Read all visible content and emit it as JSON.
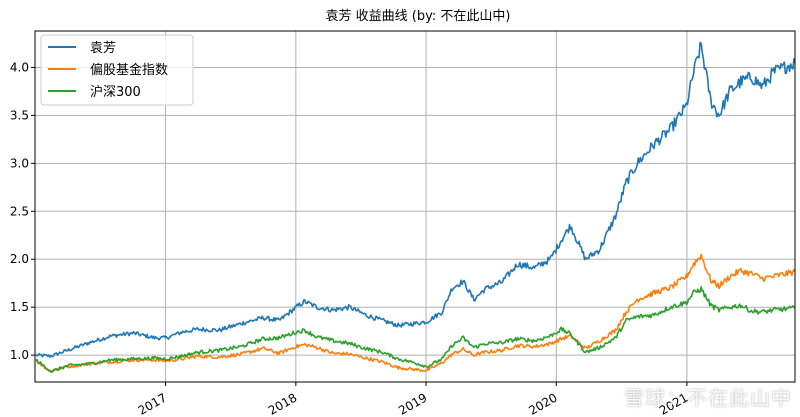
{
  "chart_data": {
    "type": "line",
    "title": "袁芳 收益曲线  (by: 不在此山中)",
    "xlabel": "",
    "ylabel": "",
    "xlim": [
      "2016-01-01",
      "2021-10-31"
    ],
    "ylim": [
      0.72,
      4.38
    ],
    "x_ticks": [
      "2017",
      "2018",
      "2019",
      "2020",
      "2021"
    ],
    "y_ticks": [
      "1.0",
      "1.5",
      "2.0",
      "2.5",
      "3.0",
      "3.5",
      "4.0"
    ],
    "grid": true,
    "legend_position": "top-left",
    "x": [
      "2016-01-04",
      "2016-02-15",
      "2016-04-01",
      "2016-06-01",
      "2016-08-01",
      "2016-10-03",
      "2016-12-01",
      "2017-01-03",
      "2017-02-15",
      "2017-04-01",
      "2017-06-01",
      "2017-08-01",
      "2017-10-02",
      "2017-11-15",
      "2018-01-02",
      "2018-01-26",
      "2018-03-01",
      "2018-04-15",
      "2018-06-01",
      "2018-07-15",
      "2018-09-01",
      "2018-10-15",
      "2018-12-01",
      "2019-01-03",
      "2019-02-15",
      "2019-03-15",
      "2019-04-15",
      "2019-05-15",
      "2019-06-15",
      "2019-08-01",
      "2019-09-15",
      "2019-11-01",
      "2019-12-15",
      "2020-01-15",
      "2020-02-10",
      "2020-03-23",
      "2020-05-01",
      "2020-06-15",
      "2020-07-15",
      "2020-08-15",
      "2020-10-01",
      "2020-11-15",
      "2020-12-31",
      "2021-01-20",
      "2021-02-10",
      "2021-03-09",
      "2021-04-01",
      "2021-05-01",
      "2021-06-01",
      "2021-07-01",
      "2021-08-01",
      "2021-09-01",
      "2021-10-31"
    ],
    "series": [
      {
        "name": "袁芳",
        "color": "#1f77b4",
        "values": [
          1.0,
          0.99,
          1.05,
          1.13,
          1.2,
          1.23,
          1.18,
          1.18,
          1.24,
          1.27,
          1.26,
          1.33,
          1.39,
          1.36,
          1.5,
          1.56,
          1.5,
          1.47,
          1.5,
          1.42,
          1.36,
          1.31,
          1.33,
          1.35,
          1.45,
          1.7,
          1.77,
          1.58,
          1.69,
          1.76,
          1.95,
          1.91,
          2.0,
          2.2,
          2.35,
          2.0,
          2.1,
          2.45,
          2.8,
          3.0,
          3.2,
          3.35,
          3.6,
          3.95,
          4.23,
          3.65,
          3.5,
          3.75,
          3.85,
          3.9,
          3.8,
          3.95,
          4.05
        ]
      },
      {
        "name": "偏股基金指数",
        "color": "#ff7f0e",
        "values": [
          0.94,
          0.83,
          0.88,
          0.91,
          0.93,
          0.95,
          0.95,
          0.94,
          0.96,
          0.99,
          0.98,
          1.01,
          1.07,
          1.02,
          1.09,
          1.11,
          1.08,
          1.02,
          1.01,
          0.97,
          0.93,
          0.87,
          0.85,
          0.84,
          0.92,
          1.01,
          1.06,
          1.0,
          1.03,
          1.05,
          1.1,
          1.09,
          1.12,
          1.17,
          1.2,
          1.07,
          1.15,
          1.26,
          1.45,
          1.58,
          1.65,
          1.7,
          1.82,
          1.95,
          2.04,
          1.78,
          1.72,
          1.82,
          1.88,
          1.85,
          1.8,
          1.82,
          1.87
        ]
      },
      {
        "name": "沪深300",
        "color": "#2ca02c",
        "values": [
          0.95,
          0.83,
          0.89,
          0.91,
          0.95,
          0.96,
          0.97,
          0.96,
          0.99,
          1.03,
          1.05,
          1.09,
          1.17,
          1.18,
          1.24,
          1.26,
          1.19,
          1.15,
          1.12,
          1.07,
          1.03,
          0.96,
          0.92,
          0.88,
          0.96,
          1.1,
          1.18,
          1.08,
          1.12,
          1.13,
          1.17,
          1.15,
          1.2,
          1.27,
          1.22,
          1.03,
          1.08,
          1.18,
          1.36,
          1.4,
          1.42,
          1.5,
          1.55,
          1.65,
          1.69,
          1.52,
          1.47,
          1.5,
          1.52,
          1.46,
          1.45,
          1.47,
          1.49
        ]
      }
    ]
  },
  "watermark": "雪球：不在此山中"
}
